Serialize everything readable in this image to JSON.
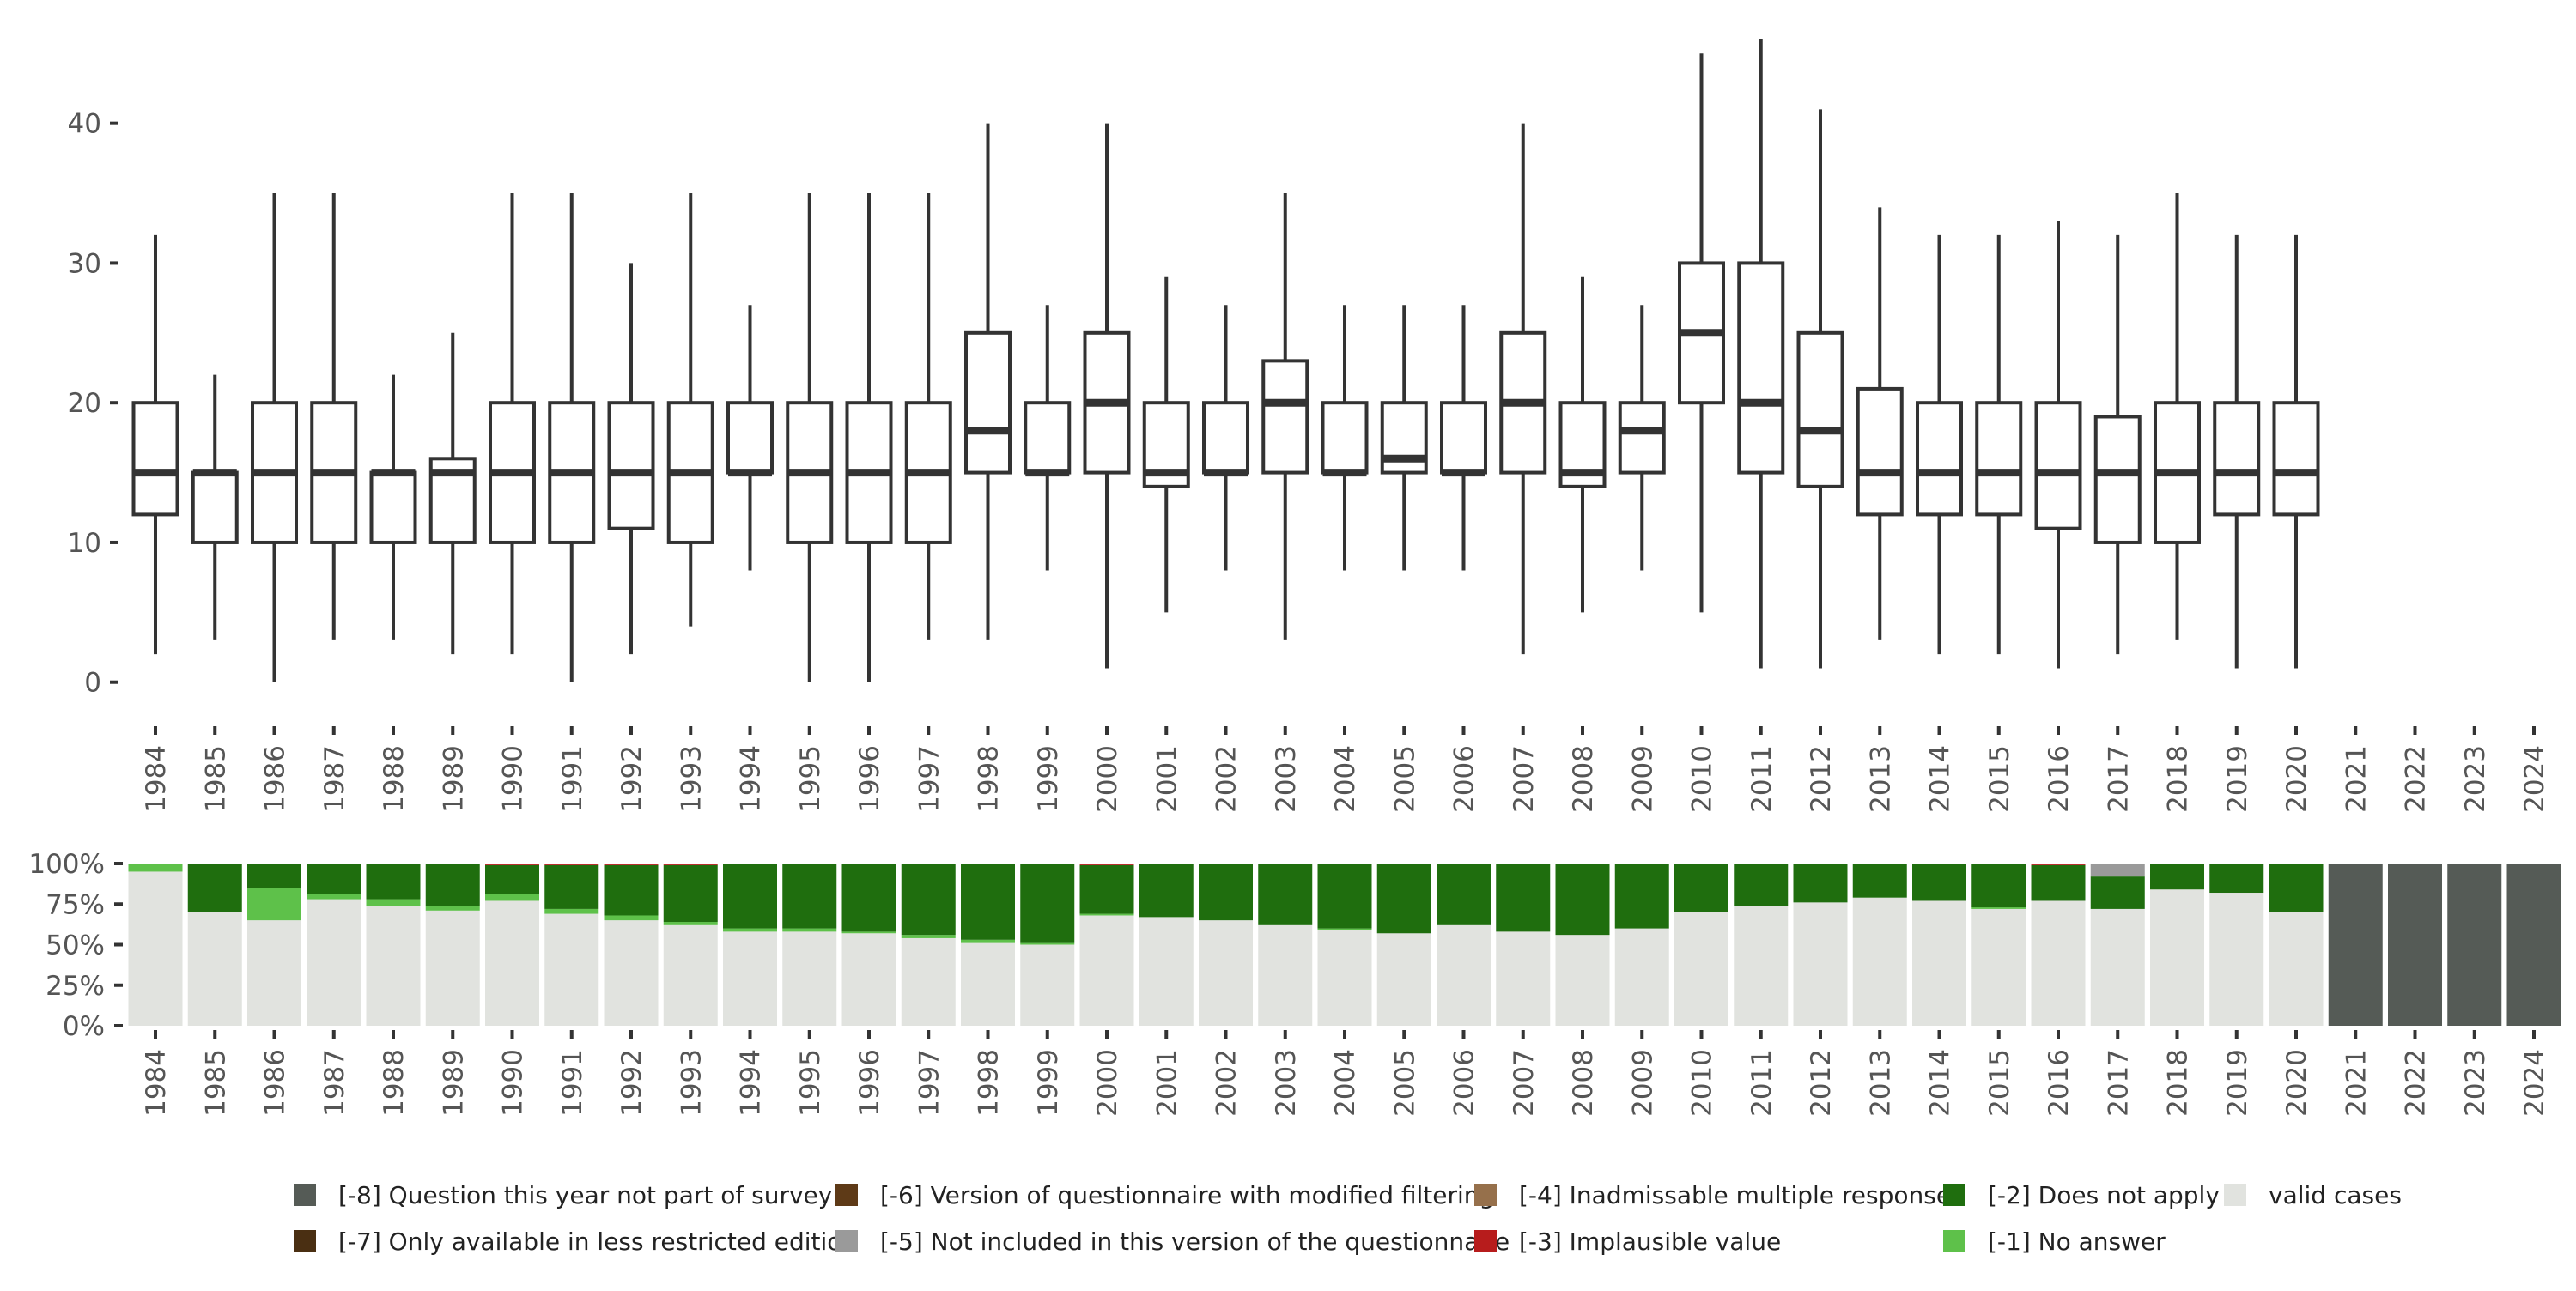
{
  "chart_data": [
    {
      "type": "box",
      "title": "",
      "xlabel": "",
      "ylabel": "",
      "ylim": [
        -1,
        46
      ],
      "yticks": [
        0,
        10,
        20,
        30,
        40
      ],
      "categories": [
        "1984",
        "1985",
        "1986",
        "1987",
        "1988",
        "1989",
        "1990",
        "1991",
        "1992",
        "1993",
        "1994",
        "1995",
        "1996",
        "1997",
        "1998",
        "1999",
        "2000",
        "2001",
        "2002",
        "2003",
        "2004",
        "2005",
        "2006",
        "2007",
        "2008",
        "2009",
        "2010",
        "2011",
        "2012",
        "2013",
        "2014",
        "2015",
        "2016",
        "2017",
        "2018",
        "2019",
        "2020",
        "2021",
        "2022",
        "2023",
        "2024"
      ],
      "boxes": [
        {
          "year": "1984",
          "min": 2,
          "q1": 12,
          "median": 15,
          "q3": 20,
          "max": 32
        },
        {
          "year": "1985",
          "min": 3,
          "q1": 10,
          "median": 15,
          "q3": 15,
          "max": 22
        },
        {
          "year": "1986",
          "min": 0,
          "q1": 10,
          "median": 15,
          "q3": 20,
          "max": 35
        },
        {
          "year": "1987",
          "min": 3,
          "q1": 10,
          "median": 15,
          "q3": 20,
          "max": 35
        },
        {
          "year": "1988",
          "min": 3,
          "q1": 10,
          "median": 15,
          "q3": 15,
          "max": 22
        },
        {
          "year": "1989",
          "min": 2,
          "q1": 10,
          "median": 15,
          "q3": 16,
          "max": 25
        },
        {
          "year": "1990",
          "min": 2,
          "q1": 10,
          "median": 15,
          "q3": 20,
          "max": 35
        },
        {
          "year": "1991",
          "min": 0,
          "q1": 10,
          "median": 15,
          "q3": 20,
          "max": 35
        },
        {
          "year": "1992",
          "min": 2,
          "q1": 11,
          "median": 15,
          "q3": 20,
          "max": 30
        },
        {
          "year": "1993",
          "min": 4,
          "q1": 10,
          "median": 15,
          "q3": 20,
          "max": 35
        },
        {
          "year": "1994",
          "min": 8,
          "q1": 15,
          "median": 15,
          "q3": 20,
          "max": 27
        },
        {
          "year": "1995",
          "min": 0,
          "q1": 10,
          "median": 15,
          "q3": 20,
          "max": 35
        },
        {
          "year": "1996",
          "min": 0,
          "q1": 10,
          "median": 15,
          "q3": 20,
          "max": 35
        },
        {
          "year": "1997",
          "min": 3,
          "q1": 10,
          "median": 15,
          "q3": 20,
          "max": 35
        },
        {
          "year": "1998",
          "min": 3,
          "q1": 15,
          "median": 18,
          "q3": 25,
          "max": 40
        },
        {
          "year": "1999",
          "min": 8,
          "q1": 15,
          "median": 15,
          "q3": 20,
          "max": 27
        },
        {
          "year": "2000",
          "min": 1,
          "q1": 15,
          "median": 20,
          "q3": 25,
          "max": 40
        },
        {
          "year": "2001",
          "min": 5,
          "q1": 14,
          "median": 15,
          "q3": 20,
          "max": 29
        },
        {
          "year": "2002",
          "min": 8,
          "q1": 15,
          "median": 15,
          "q3": 20,
          "max": 27
        },
        {
          "year": "2003",
          "min": 3,
          "q1": 15,
          "median": 20,
          "q3": 23,
          "max": 35
        },
        {
          "year": "2004",
          "min": 8,
          "q1": 15,
          "median": 15,
          "q3": 20,
          "max": 27
        },
        {
          "year": "2005",
          "min": 8,
          "q1": 15,
          "median": 16,
          "q3": 20,
          "max": 27
        },
        {
          "year": "2006",
          "min": 8,
          "q1": 15,
          "median": 15,
          "q3": 20,
          "max": 27
        },
        {
          "year": "2007",
          "min": 2,
          "q1": 15,
          "median": 20,
          "q3": 25,
          "max": 40
        },
        {
          "year": "2008",
          "min": 5,
          "q1": 14,
          "median": 15,
          "q3": 20,
          "max": 29
        },
        {
          "year": "2009",
          "min": 8,
          "q1": 15,
          "median": 18,
          "q3": 20,
          "max": 27
        },
        {
          "year": "2010",
          "min": 5,
          "q1": 20,
          "median": 25,
          "q3": 30,
          "max": 45
        },
        {
          "year": "2011",
          "min": 1,
          "q1": 15,
          "median": 20,
          "q3": 30,
          "max": 46
        },
        {
          "year": "2012",
          "min": 1,
          "q1": 14,
          "median": 18,
          "q3": 25,
          "max": 41
        },
        {
          "year": "2013",
          "min": 3,
          "q1": 12,
          "median": 15,
          "q3": 21,
          "max": 34
        },
        {
          "year": "2014",
          "min": 2,
          "q1": 12,
          "median": 15,
          "q3": 20,
          "max": 32
        },
        {
          "year": "2015",
          "min": 2,
          "q1": 12,
          "median": 15,
          "q3": 20,
          "max": 32
        },
        {
          "year": "2016",
          "min": 1,
          "q1": 11,
          "median": 15,
          "q3": 20,
          "max": 33
        },
        {
          "year": "2017",
          "min": 2,
          "q1": 10,
          "median": 15,
          "q3": 19,
          "max": 32
        },
        {
          "year": "2018",
          "min": 3,
          "q1": 10,
          "median": 15,
          "q3": 20,
          "max": 35
        },
        {
          "year": "2019",
          "min": 1,
          "q1": 12,
          "median": 15,
          "q3": 20,
          "max": 32
        },
        {
          "year": "2020",
          "min": 1,
          "q1": 12,
          "median": 15,
          "q3": 20,
          "max": 32
        }
      ]
    },
    {
      "type": "stacked-bar",
      "title": "",
      "xlabel": "",
      "ylabel": "",
      "ylim": [
        0,
        100
      ],
      "yticks": [
        "0%",
        "25%",
        "50%",
        "75%",
        "100%"
      ],
      "categories": [
        "1984",
        "1985",
        "1986",
        "1987",
        "1988",
        "1989",
        "1990",
        "1991",
        "1992",
        "1993",
        "1994",
        "1995",
        "1996",
        "1997",
        "1998",
        "1999",
        "2000",
        "2001",
        "2002",
        "2003",
        "2004",
        "2005",
        "2006",
        "2007",
        "2008",
        "2009",
        "2010",
        "2011",
        "2012",
        "2013",
        "2014",
        "2015",
        "2016",
        "2017",
        "2018",
        "2019",
        "2020",
        "2021",
        "2022",
        "2023",
        "2024"
      ],
      "series": [
        {
          "name": "valid cases",
          "color": "#e1e3df",
          "values": [
            95,
            70,
            65,
            78,
            74,
            71,
            77,
            69,
            65,
            62,
            58,
            58,
            57,
            54,
            51,
            50,
            68,
            67,
            65,
            62,
            59,
            57,
            62,
            58,
            56,
            60,
            70,
            74,
            76,
            79,
            77,
            72,
            77,
            72,
            84,
            82,
            70,
            0,
            0,
            0,
            0
          ]
        },
        {
          "name": "[-1] No answer",
          "color": "#5ec14a",
          "values": [
            5,
            0,
            20,
            3,
            4,
            3,
            4,
            3,
            3,
            2,
            2,
            2,
            1,
            2,
            2,
            1,
            1,
            0,
            0,
            0,
            1,
            0,
            0,
            0,
            0,
            0,
            0,
            0,
            0,
            0,
            0,
            1,
            0,
            0,
            0,
            0,
            0,
            0,
            0,
            0,
            0
          ]
        },
        {
          "name": "[-2] Does not apply",
          "color": "#1f6e0e",
          "values": [
            0,
            30,
            15,
            19,
            22,
            26,
            18,
            27,
            31,
            35,
            40,
            40,
            42,
            44,
            47,
            49,
            30,
            33,
            35,
            38,
            40,
            43,
            38,
            42,
            44,
            40,
            30,
            26,
            24,
            21,
            23,
            27,
            22,
            20,
            16,
            18,
            30,
            0,
            0,
            0,
            0
          ]
        },
        {
          "name": "[-3] Implausible value",
          "color": "#b71c1c",
          "values": [
            0,
            0,
            0,
            0,
            0,
            0,
            1,
            1,
            1,
            1,
            0,
            0,
            0,
            0,
            0,
            0,
            1,
            0,
            0,
            0,
            0,
            0,
            0,
            0,
            0,
            0,
            0,
            0,
            0,
            0,
            0,
            0,
            1,
            0,
            0,
            0,
            0,
            0,
            0,
            0,
            0
          ]
        },
        {
          "name": "[-4] Inadmissable multiple response",
          "color": "#96704b",
          "values": [
            0,
            0,
            0,
            0,
            0,
            0,
            0,
            0,
            0,
            0,
            0,
            0,
            0,
            0,
            0,
            0,
            0,
            0,
            0,
            0,
            0,
            0,
            0,
            0,
            0,
            0,
            0,
            0,
            0,
            0,
            0,
            0,
            0,
            0,
            0,
            0,
            0,
            0,
            0,
            0,
            0
          ]
        },
        {
          "name": "[-5] Not included in this version of the questionnaire",
          "color": "#9a9a9a",
          "values": [
            0,
            0,
            0,
            0,
            0,
            0,
            0,
            0,
            0,
            0,
            0,
            0,
            0,
            0,
            0,
            0,
            0,
            0,
            0,
            0,
            0,
            0,
            0,
            0,
            0,
            0,
            0,
            0,
            0,
            0,
            0,
            0,
            0,
            8,
            0,
            0,
            0,
            0,
            0,
            0,
            0
          ]
        },
        {
          "name": "[-6] Version of questionnaire with modified filtering",
          "color": "#5e3a17",
          "values": [
            0,
            0,
            0,
            0,
            0,
            0,
            0,
            0,
            0,
            0,
            0,
            0,
            0,
            0,
            0,
            0,
            0,
            0,
            0,
            0,
            0,
            0,
            0,
            0,
            0,
            0,
            0,
            0,
            0,
            0,
            0,
            0,
            0,
            0,
            0,
            0,
            0,
            0,
            0,
            0,
            0
          ]
        },
        {
          "name": "[-7] Only available in less restricted edition",
          "color": "#4a2f12",
          "values": [
            0,
            0,
            0,
            0,
            0,
            0,
            0,
            0,
            0,
            0,
            0,
            0,
            0,
            0,
            0,
            0,
            0,
            0,
            0,
            0,
            0,
            0,
            0,
            0,
            0,
            0,
            0,
            0,
            0,
            0,
            0,
            0,
            0,
            0,
            0,
            0,
            0,
            0,
            0,
            0,
            0
          ]
        },
        {
          "name": "[-8] Question this year not part of survey",
          "color": "#555b56",
          "values": [
            0,
            0,
            0,
            0,
            0,
            0,
            0,
            0,
            0,
            0,
            0,
            0,
            0,
            0,
            0,
            0,
            0,
            0,
            0,
            0,
            0,
            0,
            0,
            0,
            0,
            0,
            0,
            0,
            0,
            0,
            0,
            0,
            0,
            0,
            0,
            0,
            0,
            100,
            100,
            100,
            100
          ]
        }
      ]
    }
  ],
  "legend": {
    "columns": [
      [
        {
          "label": "[-8] Question this year not part of survey",
          "color": "#555b56"
        },
        {
          "label": "[-7] Only available in less restricted edition",
          "color": "#4a2f12"
        }
      ],
      [
        {
          "label": "[-6] Version of questionnaire with modified filtering",
          "color": "#5e3a17"
        },
        {
          "label": "[-5] Not included in this version of the questionnaire",
          "color": "#9a9a9a"
        }
      ],
      [
        {
          "label": "[-4] Inadmissable multiple response",
          "color": "#96704b"
        },
        {
          "label": "[-3] Implausible value",
          "color": "#b71c1c"
        }
      ],
      [
        {
          "label": "[-2] Does not apply",
          "color": "#1f6e0e"
        },
        {
          "label": "[-1] No answer",
          "color": "#5ec14a"
        }
      ],
      [
        {
          "label": "valid cases",
          "color": "#e1e3df"
        }
      ]
    ]
  }
}
